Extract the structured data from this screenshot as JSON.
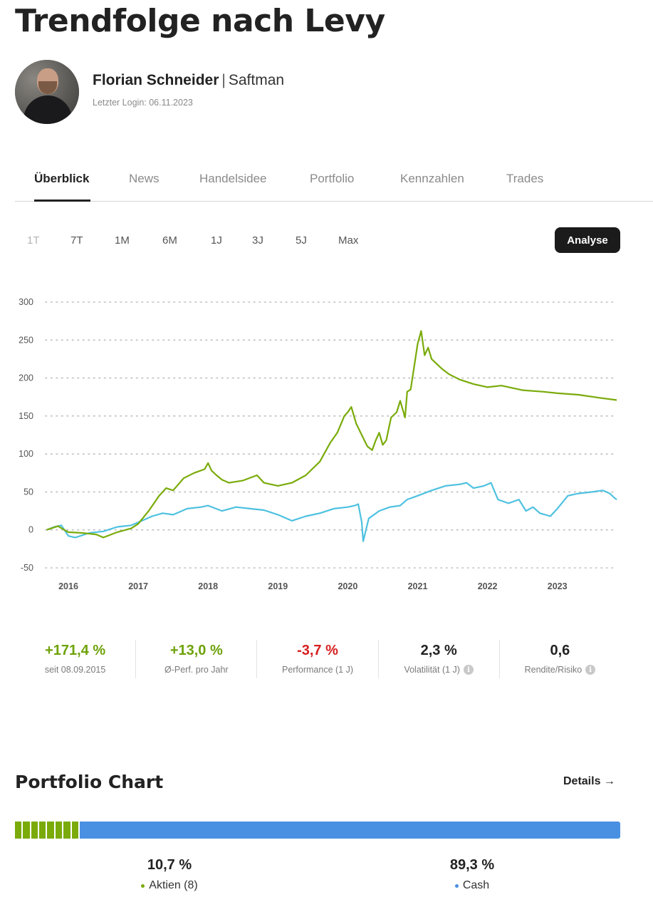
{
  "page": {
    "title": "Trendfolge nach Levy"
  },
  "profile": {
    "name": "Florian Schneider",
    "separator": "|",
    "nickname": "Saftman",
    "last_login": "Letzter Login: 06.11.2023"
  },
  "tabs": [
    {
      "label": "Überblick",
      "active": true
    },
    {
      "label": "News"
    },
    {
      "label": "Handelsidee"
    },
    {
      "label": "Portfolio"
    },
    {
      "label": "Kennzahlen"
    },
    {
      "label": "Trades"
    }
  ],
  "ranges": [
    {
      "label": "1T",
      "disabled": true
    },
    {
      "label": "7T"
    },
    {
      "label": "1M"
    },
    {
      "label": "6M"
    },
    {
      "label": "1J"
    },
    {
      "label": "3J"
    },
    {
      "label": "5J"
    },
    {
      "label": "Max"
    }
  ],
  "analyse_label": "Analyse",
  "chart_data": {
    "type": "line",
    "title": "",
    "xlabel": "",
    "ylabel": "",
    "ylim": [
      -50,
      300
    ],
    "yticks": [
      300,
      250,
      200,
      150,
      100,
      50,
      0,
      -50
    ],
    "xticks": [
      "2016",
      "2017",
      "2018",
      "2019",
      "2020",
      "2021",
      "2022",
      "2023"
    ],
    "grid": "horizontal dotted",
    "series": [
      {
        "color": "#7aab0a",
        "x": [
          2015.69,
          2015.85,
          2016.0,
          2016.2,
          2016.4,
          2016.5,
          2016.7,
          2016.9,
          2017.0,
          2017.15,
          2017.3,
          2017.4,
          2017.5,
          2017.65,
          2017.8,
          2017.95,
          2018.0,
          2018.05,
          2018.12,
          2018.2,
          2018.3,
          2018.5,
          2018.7,
          2018.8,
          2018.9,
          2019.0,
          2019.2,
          2019.4,
          2019.6,
          2019.75,
          2019.85,
          2019.95,
          2020.0,
          2020.05,
          2020.12,
          2020.2,
          2020.28,
          2020.35,
          2020.4,
          2020.45,
          2020.5,
          2020.55,
          2020.62,
          2020.7,
          2020.75,
          2020.82,
          2020.85,
          2020.9,
          2021.0,
          2021.05,
          2021.1,
          2021.15,
          2021.2,
          2021.28,
          2021.35,
          2021.45,
          2021.6,
          2021.8,
          2022.0,
          2022.2,
          2022.5,
          2022.8,
          2023.0,
          2023.3,
          2023.6,
          2023.85
        ],
        "y": [
          0,
          5,
          -3,
          -4,
          -6,
          -10,
          -3,
          2,
          8,
          25,
          45,
          55,
          52,
          68,
          75,
          80,
          88,
          78,
          72,
          66,
          62,
          65,
          72,
          62,
          60,
          58,
          62,
          72,
          90,
          115,
          128,
          150,
          155,
          162,
          140,
          125,
          110,
          105,
          118,
          128,
          112,
          118,
          148,
          155,
          170,
          148,
          182,
          185,
          245,
          262,
          230,
          240,
          225,
          218,
          212,
          205,
          198,
          192,
          188,
          190,
          184,
          182,
          180,
          178,
          174,
          171
        ]
      },
      {
        "color": "#4ec1e0",
        "x": [
          2015.69,
          2015.8,
          2015.9,
          2016.0,
          2016.1,
          2016.3,
          2016.5,
          2016.7,
          2016.9,
          2017.0,
          2017.2,
          2017.35,
          2017.5,
          2017.7,
          2017.9,
          2018.0,
          2018.2,
          2018.4,
          2018.6,
          2018.8,
          2019.0,
          2019.2,
          2019.4,
          2019.6,
          2019.8,
          2020.0,
          2020.1,
          2020.15,
          2020.2,
          2020.22,
          2020.3,
          2020.45,
          2020.6,
          2020.75,
          2020.85,
          2021.0,
          2021.2,
          2021.4,
          2021.6,
          2021.7,
          2021.8,
          2021.95,
          2022.05,
          2022.15,
          2022.3,
          2022.45,
          2022.55,
          2022.65,
          2022.75,
          2022.9,
          2023.0,
          2023.15,
          2023.3,
          2023.5,
          2023.65,
          2023.75,
          2023.82,
          2023.85
        ],
        "y": [
          0,
          4,
          6,
          -8,
          -10,
          -4,
          -2,
          4,
          6,
          10,
          18,
          22,
          20,
          28,
          30,
          32,
          25,
          30,
          28,
          26,
          20,
          12,
          18,
          22,
          28,
          30,
          32,
          34,
          10,
          -15,
          15,
          25,
          30,
          32,
          40,
          45,
          52,
          58,
          60,
          62,
          55,
          58,
          62,
          40,
          35,
          40,
          25,
          30,
          22,
          18,
          28,
          45,
          48,
          50,
          52,
          48,
          42,
          40
        ]
      }
    ]
  },
  "stats": [
    {
      "value": "+171,4 %",
      "label": "seit 08.09.2015",
      "color": "#6ea20a"
    },
    {
      "value": "+13,0 %",
      "label": "Ø-Perf. pro Jahr",
      "color": "#6ea20a"
    },
    {
      "value": "-3,7 %",
      "label": "Performance (1 J)",
      "color": "#d61f1f"
    },
    {
      "value": "2,3 %",
      "label": "Volatilität (1 J)",
      "color": "#222222",
      "info": true
    },
    {
      "value": "0,6",
      "label": "Rendite/Risiko",
      "color": "#222222",
      "info": true
    }
  ],
  "portfolio": {
    "title": "Portfolio Chart",
    "details_label": "Details →",
    "stocks_share": 0.107,
    "stocks_segments": 8,
    "allocations": [
      {
        "pct": "10,7 %",
        "label": "Aktien (8)",
        "color": "#7aab0a"
      },
      {
        "pct": "89,3 %",
        "label": "Cash",
        "color": "#4a90e2"
      }
    ]
  }
}
